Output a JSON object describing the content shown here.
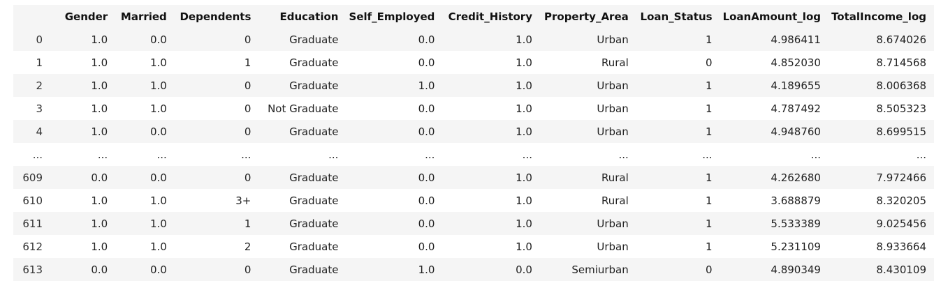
{
  "table": {
    "index_header": "",
    "columns": [
      "Gender",
      "Married",
      "Dependents",
      "Education",
      "Self_Employed",
      "Credit_History",
      "Property_Area",
      "Loan_Status",
      "LoanAmount_log",
      "TotalIncome_log"
    ],
    "rows": [
      {
        "index": "0",
        "cells": [
          "1.0",
          "0.0",
          "0",
          "Graduate",
          "0.0",
          "1.0",
          "Urban",
          "1",
          "4.986411",
          "8.674026"
        ]
      },
      {
        "index": "1",
        "cells": [
          "1.0",
          "1.0",
          "1",
          "Graduate",
          "0.0",
          "1.0",
          "Rural",
          "0",
          "4.852030",
          "8.714568"
        ]
      },
      {
        "index": "2",
        "cells": [
          "1.0",
          "1.0",
          "0",
          "Graduate",
          "1.0",
          "1.0",
          "Urban",
          "1",
          "4.189655",
          "8.006368"
        ]
      },
      {
        "index": "3",
        "cells": [
          "1.0",
          "1.0",
          "0",
          "Not Graduate",
          "0.0",
          "1.0",
          "Urban",
          "1",
          "4.787492",
          "8.505323"
        ]
      },
      {
        "index": "4",
        "cells": [
          "1.0",
          "0.0",
          "0",
          "Graduate",
          "0.0",
          "1.0",
          "Urban",
          "1",
          "4.948760",
          "8.699515"
        ]
      },
      {
        "index": "...",
        "cells": [
          "...",
          "...",
          "...",
          "...",
          "...",
          "...",
          "...",
          "...",
          "...",
          "..."
        ]
      },
      {
        "index": "609",
        "cells": [
          "0.0",
          "0.0",
          "0",
          "Graduate",
          "0.0",
          "1.0",
          "Rural",
          "1",
          "4.262680",
          "7.972466"
        ]
      },
      {
        "index": "610",
        "cells": [
          "1.0",
          "1.0",
          "3+",
          "Graduate",
          "0.0",
          "1.0",
          "Rural",
          "1",
          "3.688879",
          "8.320205"
        ]
      },
      {
        "index": "611",
        "cells": [
          "1.0",
          "1.0",
          "1",
          "Graduate",
          "0.0",
          "1.0",
          "Urban",
          "1",
          "5.533389",
          "9.025456"
        ]
      },
      {
        "index": "612",
        "cells": [
          "1.0",
          "1.0",
          "2",
          "Graduate",
          "0.0",
          "1.0",
          "Urban",
          "1",
          "5.231109",
          "8.933664"
        ]
      },
      {
        "index": "613",
        "cells": [
          "0.0",
          "0.0",
          "0",
          "Graduate",
          "1.0",
          "0.0",
          "Semiurban",
          "0",
          "4.890349",
          "8.430109"
        ]
      }
    ]
  }
}
